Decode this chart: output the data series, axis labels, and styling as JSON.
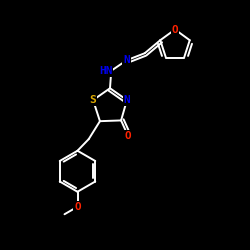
{
  "background": "#000000",
  "bond_color": "#ffffff",
  "atom_colors": {
    "N": "#0000ee",
    "O": "#ff2200",
    "S": "#ddaa00",
    "C": "#ffffff",
    "H": "#ffffff"
  },
  "lw": 1.4,
  "fs": 8.0
}
